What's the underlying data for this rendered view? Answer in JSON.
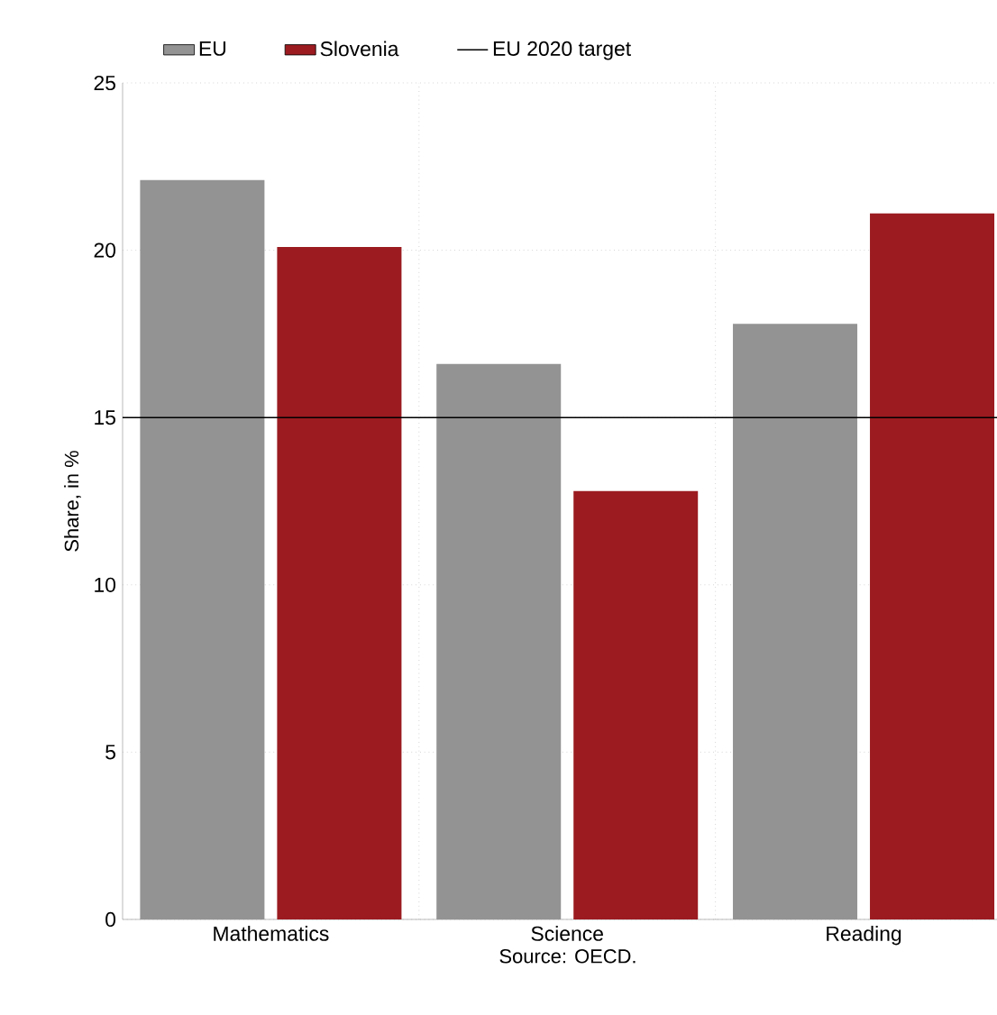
{
  "chart_data": {
    "type": "bar",
    "categories": [
      "Mathematics",
      "Science",
      "Reading"
    ],
    "series": [
      {
        "name": "EU",
        "color": "#939393",
        "values": [
          22.1,
          16.6,
          17.8
        ]
      },
      {
        "name": "Slovenia",
        "color": "#9b1b20",
        "values": [
          20.1,
          12.8,
          21.1
        ]
      }
    ],
    "ylabel": "Share, in %",
    "ylim": [
      0,
      25
    ],
    "yticks": [
      0,
      5,
      10,
      15,
      20,
      25
    ],
    "ref_lines": [
      {
        "axis": "y",
        "value": 15,
        "label": "EU 2020 target",
        "color": "#000000"
      }
    ],
    "annotations": [
      "Source: OECD."
    ],
    "grid": true,
    "legend": "top"
  }
}
